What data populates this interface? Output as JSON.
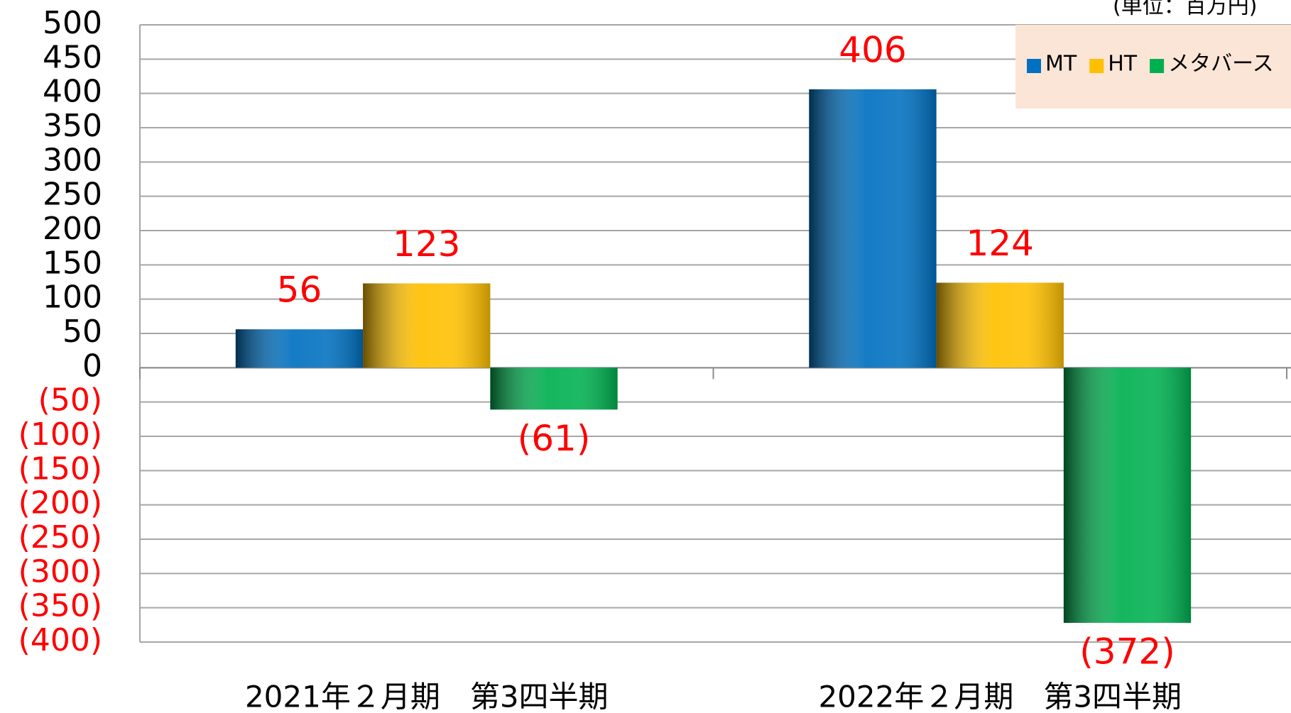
{
  "chart_data": {
    "type": "bar",
    "unit_label": "(単位：百万円)",
    "categories": [
      "2021年２月期　第3四半期",
      "2022年２月期　第3四半期"
    ],
    "series": [
      {
        "name": "MT",
        "color": "#0070c0",
        "values": [
          56,
          406
        ]
      },
      {
        "name": "HT",
        "color": "#ffc000",
        "values": [
          123,
          124
        ]
      },
      {
        "name": "メタバース",
        "color": "#00b050",
        "values": [
          -61,
          -372
        ],
        "value_labels": [
          "(61)",
          "(372)"
        ]
      }
    ],
    "ylim": [
      -400,
      500
    ],
    "yticks": [
      {
        "value": -400,
        "label": "(400)"
      },
      {
        "value": -350,
        "label": "(350)"
      },
      {
        "value": -300,
        "label": "(300)"
      },
      {
        "value": -250,
        "label": "(250)"
      },
      {
        "value": -200,
        "label": "(200)"
      },
      {
        "value": -150,
        "label": "(150)"
      },
      {
        "value": -100,
        "label": "(100)"
      },
      {
        "value": -50,
        "label": "(50)"
      },
      0,
      50,
      100,
      150,
      200,
      250,
      300,
      350,
      400,
      450,
      500
    ],
    "grid": true,
    "legend": "upper right"
  }
}
